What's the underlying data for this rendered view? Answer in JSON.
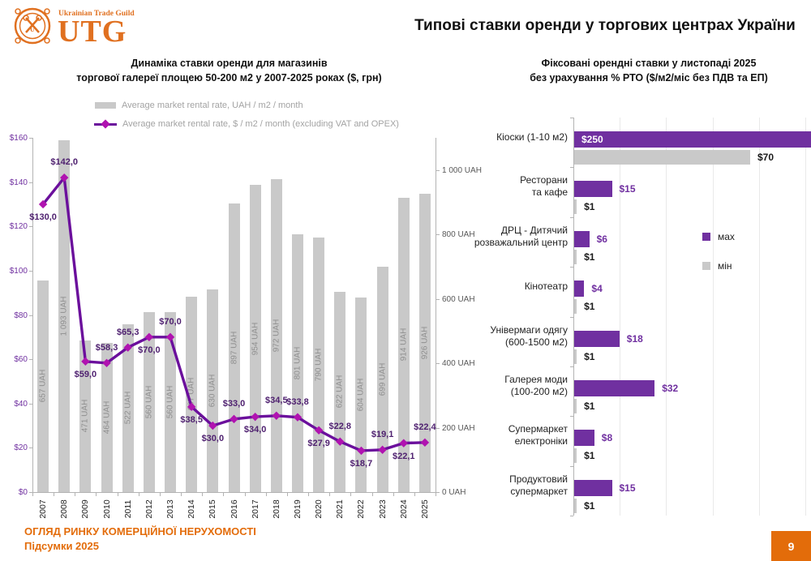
{
  "header": {
    "title": "Типові ставки оренди у торгових центрах України",
    "logo": {
      "tagline": "Ukrainian Trade Guild",
      "brand": "UTG"
    }
  },
  "footer": {
    "line1": "ОГЛЯД РИНКУ КОМЕРЦІЙНОЇ НЕРУХОМОСТІ",
    "line2": "Підсумки 2025",
    "page_number": "9"
  },
  "colors": {
    "orange": "#e36c0a",
    "bar_gray": "#c9c9c9",
    "bar_label_gray": "#8f8f8f",
    "purple": "#7030a0",
    "line_purple": "#6b0f9c",
    "marker_magenta": "#b013b0",
    "label_purple": "#4f2170",
    "axis_line": "#b3b3b3",
    "grid_gray": "#e9e9e9",
    "usd_tick": "#7030a0",
    "uah_tick": "#595959"
  },
  "chart_data": [
    {
      "id": "rental-dynamics",
      "type": "bar+line",
      "title_line1": "Динаміка ставки оренди для магазинів",
      "title_line2": "торгової галереї площею 50-200 м2 у 2007-2025 роках ($, грн)",
      "legend": [
        {
          "label": "Average market rental rate, UAH / m2 / month",
          "swatch": "bar"
        },
        {
          "label": "Average market rental rate, $ / m2 / month (excluding VAT and OPEX)",
          "swatch": "line"
        }
      ],
      "categories": [
        "2007",
        "2008",
        "2009",
        "2010",
        "2011",
        "2012",
        "2013",
        "2014",
        "2015",
        "2016",
        "2017",
        "2018",
        "2019",
        "2020",
        "2021",
        "2022",
        "2023",
        "2024",
        "2025"
      ],
      "series": [
        {
          "name": "Average market rental rate, UAH / m2 / month",
          "type": "bar",
          "values": [
            657,
            1093,
            471,
            464,
            522,
            560,
            560,
            607,
            630,
            897,
            954,
            972,
            801,
            790,
            622,
            604,
            699,
            914,
            926
          ],
          "labels": [
            "657 UAH",
            "1 093 UAH",
            "471 UAH",
            "464 UAH",
            "522 UAH",
            "560 UAH",
            "560 UAH",
            "607 UAH",
            "630 UAH",
            "897 UAH",
            "954 UAH",
            "972 UAH",
            "801 UAH",
            "790 UAH",
            "622 UAH",
            "604 UAH",
            "699 UAH",
            "914 UAH",
            "926 UAH"
          ]
        },
        {
          "name": "Average market rental rate, $ / m2 / month (excluding VAT and OPEX)",
          "type": "line",
          "values": [
            130.0,
            142.0,
            59.0,
            58.3,
            65.3,
            70.0,
            70.0,
            38.5,
            30.0,
            33.0,
            34.0,
            34.5,
            33.8,
            27.9,
            22.8,
            18.7,
            19.1,
            22.1,
            22.4
          ],
          "labels": [
            "$130,0",
            "$142,0",
            "$59,0",
            "$58,3",
            "$65,3",
            "$70,0",
            "$70,0",
            "$38,5",
            "$30,0",
            "$33,0",
            "$34,0",
            "$34,5",
            "$33,8",
            "$27,9",
            "$22,8",
            "$18,7",
            "$19,1",
            "$22,1",
            "$22,4"
          ],
          "label_side": [
            "below",
            "above",
            "below",
            "above",
            "above",
            "below",
            "above",
            "below",
            "below",
            "above",
            "below",
            "above",
            "above",
            "below",
            "above",
            "below",
            "above",
            "below",
            "above"
          ]
        }
      ],
      "axis_left": {
        "label": "$",
        "min": 0,
        "max": 160,
        "ticks": [
          "$0",
          "$20",
          "$40",
          "$60",
          "$80",
          "$100",
          "$120",
          "$140",
          "$160"
        ]
      },
      "axis_right": {
        "label": "UAH",
        "min": 0,
        "max": 1000,
        "ticks": [
          "0 UAH",
          "200 UAH",
          "400 UAH",
          "600 UAH",
          "800 UAH",
          "1 000 UAH"
        ]
      },
      "grid": "off",
      "legend_position": "top"
    },
    {
      "id": "fixed-rates-november-2025",
      "type": "bar",
      "orientation": "horizontal",
      "title_line1": "Фіксовані орендні ставки у листопаді 2025",
      "title_line2": "без урахування % РТО ($/м2/міс без ПДВ та ЕП)",
      "legend": [
        {
          "label": "мах",
          "swatch": "purple"
        },
        {
          "label": "мін",
          "swatch": "gray"
        }
      ],
      "categories": [
        [
          "Кіоски (1-10 м2)"
        ],
        [
          "Ресторани",
          "та кафе"
        ],
        [
          "ДРЦ - Дитячий",
          "розважальний центр"
        ],
        [
          "Кінотеатр"
        ],
        [
          "Універмаги одягу",
          "(600-1500 м2)"
        ],
        [
          "Галерея моди",
          "(100-200 м2)"
        ],
        [
          "Супермаркет",
          "електроніки"
        ],
        [
          "Продуктовий",
          "супермаркет"
        ]
      ],
      "series": [
        {
          "name": "мах",
          "values": [
            250,
            15,
            6,
            4,
            18,
            32,
            8,
            15
          ],
          "labels": [
            "$250",
            "$15",
            "$6",
            "$4",
            "$18",
            "$32",
            "$8",
            "$15"
          ]
        },
        {
          "name": "мін",
          "values": [
            70,
            1,
            1,
            1,
            1,
            1,
            1,
            1
          ],
          "labels": [
            "$70",
            "$1",
            "$1",
            "$1",
            "$1",
            "$1",
            "$1",
            "$1"
          ]
        }
      ],
      "grid": "vertical-light",
      "legend_position": "right"
    }
  ]
}
